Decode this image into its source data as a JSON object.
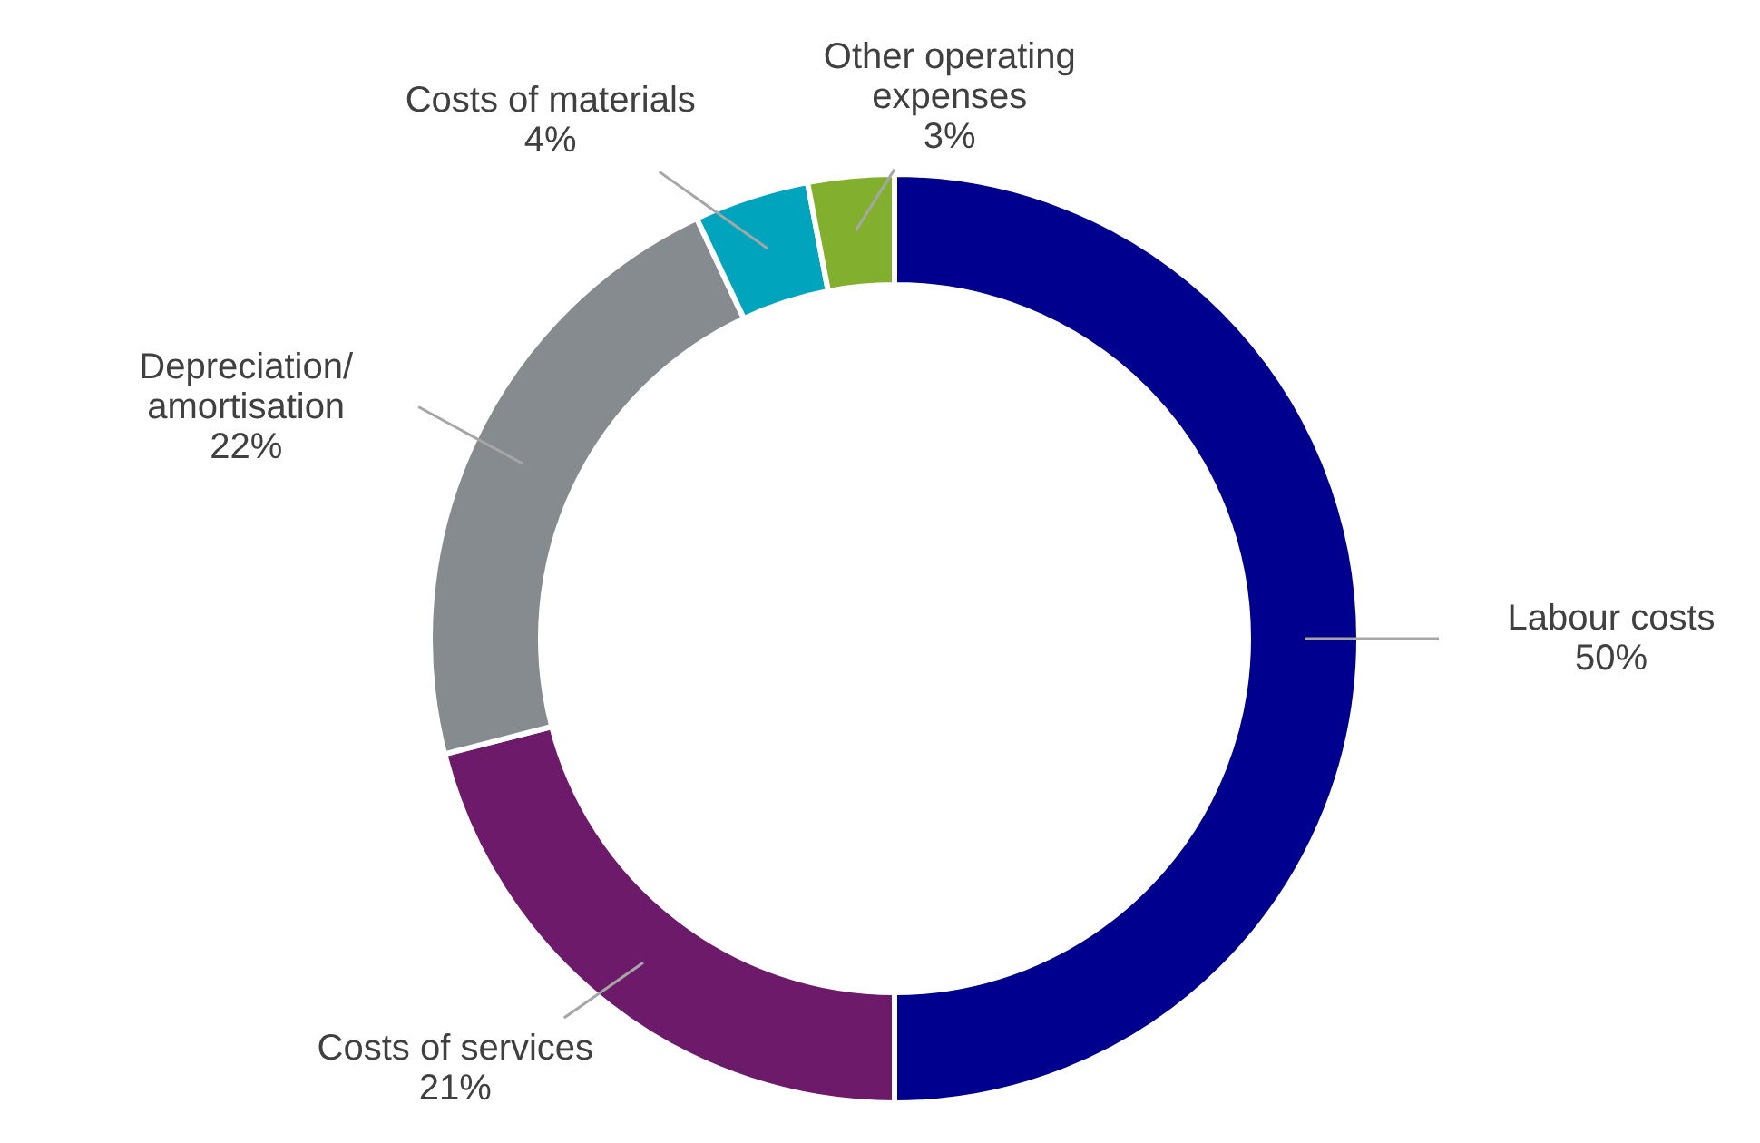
{
  "chart_data": {
    "type": "donut",
    "categories": [
      "Labour costs",
      "Costs of services",
      "Depreciation/\namortisation",
      "Costs of materials",
      "Other operating\nexpenses"
    ],
    "values": [
      50,
      21,
      22,
      4,
      3
    ],
    "value_labels": [
      "50%",
      "21%",
      "22%",
      "4%",
      "3%"
    ],
    "colors": [
      "#00008e",
      "#6d1a6a",
      "#868b90",
      "#00a5bd",
      "#83af2f"
    ]
  }
}
